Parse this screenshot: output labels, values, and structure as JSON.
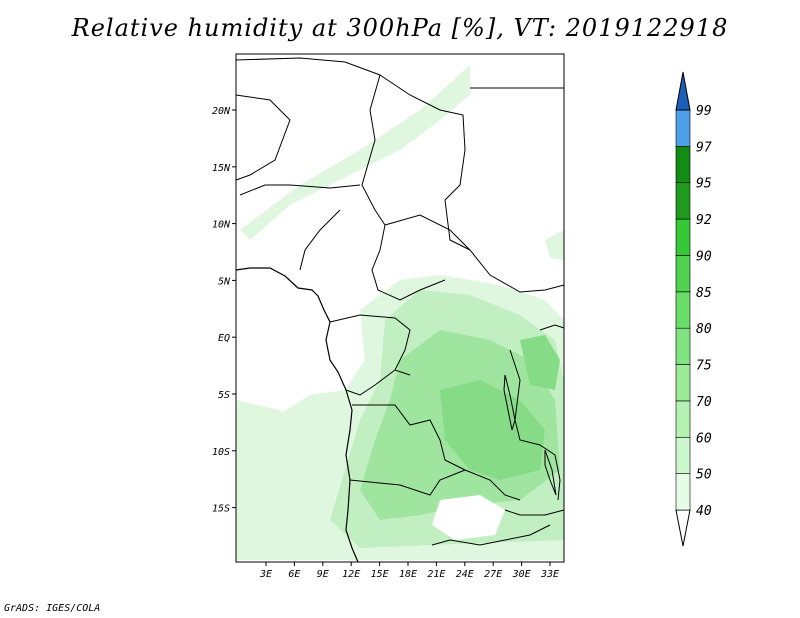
{
  "title": "Relative humidity at 300hPa [%], VT: 2019122918",
  "credit": "GrADS: IGES/COLA",
  "map": {
    "lon_ticks": [
      "3E",
      "6E",
      "9E",
      "12E",
      "15E",
      "18E",
      "21E",
      "24E",
      "27E",
      "30E",
      "33E"
    ],
    "lat_ticks": [
      "20N",
      "15N",
      "10N",
      "5N",
      "EQ",
      "5S",
      "10S",
      "15S"
    ]
  },
  "colorbar": {
    "labels": [
      "40",
      "50",
      "60",
      "70",
      "75",
      "80",
      "85",
      "90",
      "92",
      "95",
      "97",
      "99"
    ],
    "colors": [
      "#ffffff",
      "#e6fce6",
      "#cdf7cd",
      "#b4f2b4",
      "#9beb9b",
      "#82e382",
      "#69dc69",
      "#50d250",
      "#37c837",
      "#1e9b1e",
      "#128c12",
      "#4f9fe8",
      "#2e7fd6",
      "#1c5fb8"
    ]
  },
  "shading_colors": {
    "light": "#dff7df",
    "mid": "#c2efc2",
    "strong": "#9fe49f",
    "deep": "#86dc86"
  }
}
